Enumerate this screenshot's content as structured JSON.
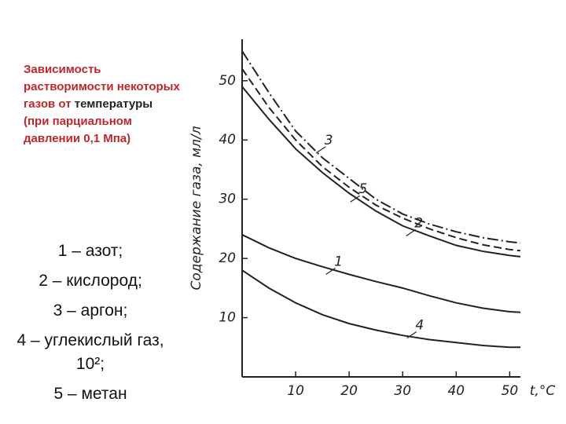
{
  "slide": {
    "title_parts": [
      {
        "text": "Зависимость растворимости некоторых газов от",
        "color": "#c0272d"
      },
      {
        "text": "температуры",
        "color": "#222222"
      },
      {
        "text": "(при парциальном давлении 0,1 Мпа)",
        "color": "#c0272d"
      }
    ],
    "list": [
      "1 – азот;",
      "2 – кислород;",
      "3 – аргон;",
      "4 – углекислый газ, 10²;",
      "5 – метан"
    ]
  },
  "chart_data": {
    "type": "line",
    "x_label": "t,°C",
    "y_label": "Содержание газа, мл/л",
    "x": [
      0,
      5,
      10,
      15,
      20,
      25,
      30,
      35,
      40,
      45,
      50,
      52
    ],
    "xlim": [
      0,
      52
    ],
    "ylim": [
      0,
      57
    ],
    "xticks": [
      10,
      20,
      30,
      40,
      50
    ],
    "yticks": [
      10,
      20,
      30,
      40,
      50
    ],
    "series": [
      {
        "name": "1",
        "color": "#222222",
        "dash": "none",
        "values": [
          24,
          21.8,
          20,
          18.6,
          17.3,
          16.1,
          15,
          13.7,
          12.5,
          11.6,
          11,
          10.9
        ]
      },
      {
        "name": "2",
        "color": "#222222",
        "dash": "none",
        "values": [
          49,
          43.5,
          38.5,
          34.5,
          31,
          28,
          25.5,
          23.8,
          22.2,
          21.2,
          20.5,
          20.3
        ]
      },
      {
        "name": "3",
        "color": "#222222",
        "dash": "14 4 2 4",
        "values": [
          55,
          48,
          41.5,
          37,
          33.5,
          30,
          27.5,
          25.8,
          24.5,
          23.5,
          22.8,
          22.6
        ]
      },
      {
        "name": "4",
        "color": "#222222",
        "dash": "none",
        "values": [
          18,
          15,
          12.5,
          10.5,
          9,
          7.9,
          7,
          6.3,
          5.8,
          5.3,
          5,
          5
        ]
      },
      {
        "name": "5",
        "color": "#222222",
        "dash": "10 5",
        "values": [
          52,
          45.5,
          40,
          35.5,
          32,
          29,
          26.8,
          25,
          23.5,
          22.3,
          21.5,
          21.3
        ]
      }
    ]
  }
}
